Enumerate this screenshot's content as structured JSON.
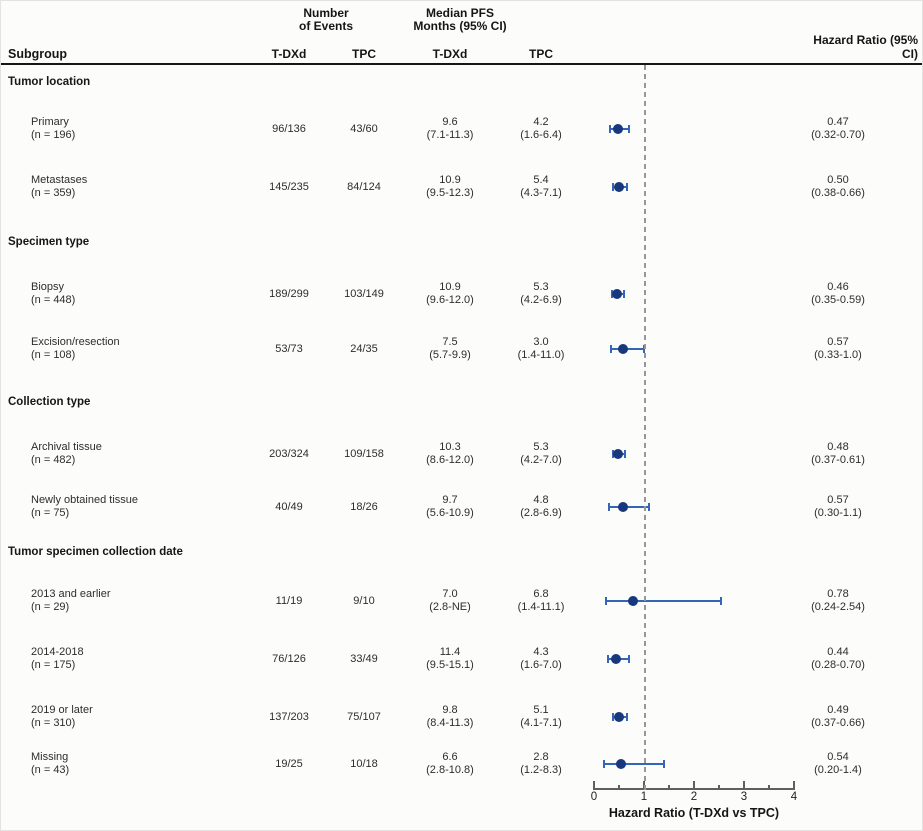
{
  "header": {
    "subgroup": "Subgroup",
    "events_group_line1": "Number",
    "events_group_line2": "of Events",
    "pfs_group_line1": "Median PFS",
    "pfs_group_line2": "Months (95% CI)",
    "events_tdxd": "T-DXd",
    "events_tpc": "TPC",
    "pfs_tdxd": "T-DXd",
    "pfs_tpc": "TPC",
    "hazard_ratio": "Hazard Ratio (95% CI)"
  },
  "colors": {
    "point": "#17387d",
    "ci": "#3565b5",
    "reference_line": "#979797"
  },
  "chart_data": {
    "type": "forest",
    "axis": {
      "min": 0,
      "max": 4,
      "major_ticks": [
        0,
        1,
        2,
        3,
        4
      ],
      "minor_tick_step": 0.5,
      "reference_line": 1,
      "label": "Hazard Ratio (T-DXd vs TPC)"
    },
    "sections": [
      {
        "title": "Tumor location",
        "rows": [
          {
            "label": "Primary",
            "n": "(n = 196)",
            "events_tdxd": "96/136",
            "events_tpc": "43/60",
            "pfs_tdxd_median": "9.6",
            "pfs_tdxd_ci": "(7.1-11.3)",
            "pfs_tpc_median": "4.2",
            "pfs_tpc_ci": "(1.6-6.4)",
            "hr_text": "0.47",
            "hr_ci_text": "(0.32-0.70)",
            "hr": 0.47,
            "hr_low": 0.32,
            "hr_high": 0.7
          },
          {
            "label": "Metastases",
            "n": "(n = 359)",
            "events_tdxd": "145/235",
            "events_tpc": "84/124",
            "pfs_tdxd_median": "10.9",
            "pfs_tdxd_ci": "(9.5-12.3)",
            "pfs_tpc_median": "5.4",
            "pfs_tpc_ci": "(4.3-7.1)",
            "hr_text": "0.50",
            "hr_ci_text": "(0.38-0.66)",
            "hr": 0.5,
            "hr_low": 0.38,
            "hr_high": 0.66
          }
        ]
      },
      {
        "title": "Specimen type",
        "rows": [
          {
            "label": "Biopsy",
            "n": "(n = 448)",
            "events_tdxd": "189/299",
            "events_tpc": "103/149",
            "pfs_tdxd_median": "10.9",
            "pfs_tdxd_ci": "(9.6-12.0)",
            "pfs_tpc_median": "5.3",
            "pfs_tpc_ci": "(4.2-6.9)",
            "hr_text": "0.46",
            "hr_ci_text": "(0.35-0.59)",
            "hr": 0.46,
            "hr_low": 0.35,
            "hr_high": 0.59
          },
          {
            "label": "Excision/resection",
            "n": "(n = 108)",
            "events_tdxd": "53/73",
            "events_tpc": "24/35",
            "pfs_tdxd_median": "7.5",
            "pfs_tdxd_ci": "(5.7-9.9)",
            "pfs_tpc_median": "3.0",
            "pfs_tpc_ci": "(1.4-11.0)",
            "hr_text": "0.57",
            "hr_ci_text": "(0.33-1.0)",
            "hr": 0.57,
            "hr_low": 0.33,
            "hr_high": 1.0
          }
        ]
      },
      {
        "title": "Collection type",
        "rows": [
          {
            "label": "Archival tissue",
            "n": "(n = 482)",
            "events_tdxd": "203/324",
            "events_tpc": "109/158",
            "pfs_tdxd_median": "10.3",
            "pfs_tdxd_ci": "(8.6-12.0)",
            "pfs_tpc_median": "5.3",
            "pfs_tpc_ci": "(4.2-7.0)",
            "hr_text": "0.48",
            "hr_ci_text": "(0.37-0.61)",
            "hr": 0.48,
            "hr_low": 0.37,
            "hr_high": 0.61
          },
          {
            "label": "Newly obtained tissue",
            "n": "(n = 75)",
            "events_tdxd": "40/49",
            "events_tpc": "18/26",
            "pfs_tdxd_median": "9.7",
            "pfs_tdxd_ci": "(5.6-10.9)",
            "pfs_tpc_median": "4.8",
            "pfs_tpc_ci": "(2.8-6.9)",
            "hr_text": "0.57",
            "hr_ci_text": "(0.30-1.1)",
            "hr": 0.57,
            "hr_low": 0.3,
            "hr_high": 1.1
          }
        ]
      },
      {
        "title": "Tumor specimen collection date",
        "rows": [
          {
            "label": "2013 and earlier",
            "n": "(n = 29)",
            "events_tdxd": "11/19",
            "events_tpc": "9/10",
            "pfs_tdxd_median": "7.0",
            "pfs_tdxd_ci": "(2.8-NE)",
            "pfs_tpc_median": "6.8",
            "pfs_tpc_ci": "(1.4-11.1)",
            "hr_text": "0.78",
            "hr_ci_text": "(0.24-2.54)",
            "hr": 0.78,
            "hr_low": 0.24,
            "hr_high": 2.54
          },
          {
            "label": "2014-2018",
            "n": "(n = 175)",
            "events_tdxd": "76/126",
            "events_tpc": "33/49",
            "pfs_tdxd_median": "11.4",
            "pfs_tdxd_ci": "(9.5-15.1)",
            "pfs_tpc_median": "4.3",
            "pfs_tpc_ci": "(1.6-7.0)",
            "hr_text": "0.44",
            "hr_ci_text": "(0.28-0.70)",
            "hr": 0.44,
            "hr_low": 0.28,
            "hr_high": 0.7
          },
          {
            "label": "2019 or later",
            "n": "(n = 310)",
            "events_tdxd": "137/203",
            "events_tpc": "75/107",
            "pfs_tdxd_median": "9.8",
            "pfs_tdxd_ci": "(8.4-11.3)",
            "pfs_tpc_median": "5.1",
            "pfs_tpc_ci": "(4.1-7.1)",
            "hr_text": "0.49",
            "hr_ci_text": "(0.37-0.66)",
            "hr": 0.49,
            "hr_low": 0.37,
            "hr_high": 0.66
          },
          {
            "label": "Missing",
            "n": "(n = 43)",
            "events_tdxd": "19/25",
            "events_tpc": "10/18",
            "pfs_tdxd_median": "6.6",
            "pfs_tdxd_ci": "(2.8-10.8)",
            "pfs_tpc_median": "2.8",
            "pfs_tpc_ci": "(1.2-8.3)",
            "hr_text": "0.54",
            "hr_ci_text": "(0.20-1.4)",
            "hr": 0.54,
            "hr_low": 0.2,
            "hr_high": 1.4
          }
        ]
      }
    ]
  }
}
